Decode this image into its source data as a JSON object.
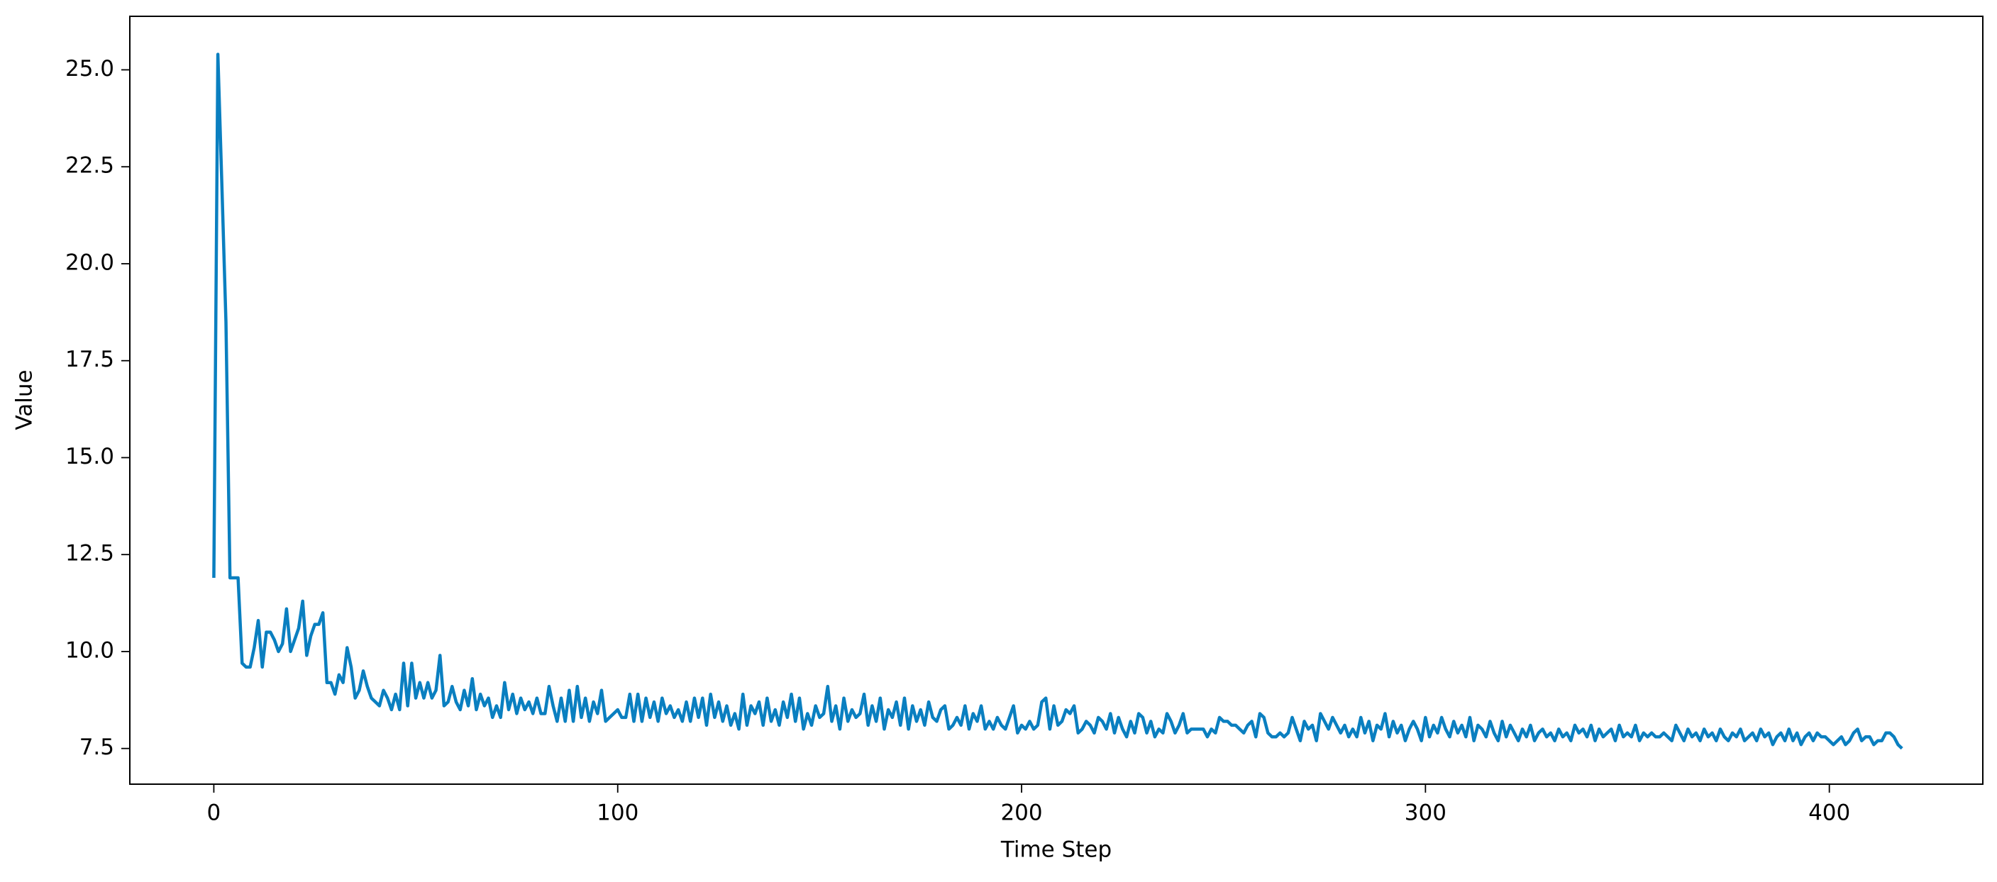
{
  "chart_data": {
    "type": "line",
    "xlabel": "Time Step",
    "ylabel": "Value",
    "color": "#0a7fc0",
    "xlim": [
      -20.8,
      438
    ],
    "ylim": [
      6.58,
      26.38
    ],
    "xticks": [
      0,
      100,
      200,
      300,
      400
    ],
    "yticks": [
      7.5,
      {
        "value": 10,
        "label": "10.0"
      },
      12.5,
      {
        "value": 15,
        "label": "15.0"
      },
      17.5,
      {
        "value": 20,
        "label": "20.0"
      },
      22.5,
      {
        "value": 25,
        "label": "25.0"
      }
    ],
    "grid": false,
    "x": [
      0,
      1,
      2,
      3,
      4,
      5,
      6,
      7,
      8,
      9,
      10,
      11,
      12,
      13,
      14,
      15,
      16,
      17,
      18,
      19,
      20,
      21,
      22,
      23,
      24,
      25,
      26,
      27,
      28,
      29,
      30,
      31,
      32,
      33,
      34,
      35,
      36,
      37,
      38,
      39,
      40,
      41,
      42,
      43,
      44,
      45,
      46,
      47,
      48,
      49,
      50,
      51,
      52,
      53,
      54,
      55,
      56,
      57,
      58,
      59,
      60,
      61,
      62,
      63,
      64,
      65,
      66,
      67,
      68,
      69,
      70,
      71,
      72,
      73,
      74,
      75,
      76,
      77,
      78,
      79,
      80,
      81,
      82,
      83,
      84,
      85,
      86,
      87,
      88,
      89,
      90,
      91,
      92,
      93,
      94,
      95,
      96,
      97,
      98,
      99,
      100,
      101,
      102,
      103,
      104,
      105,
      106,
      107,
      108,
      109,
      110,
      111,
      112,
      113,
      114,
      115,
      116,
      117,
      118,
      119,
      120,
      121,
      122,
      123,
      124,
      125,
      126,
      127,
      128,
      129,
      130,
      131,
      132,
      133,
      134,
      135,
      136,
      137,
      138,
      139,
      140,
      141,
      142,
      143,
      144,
      145,
      146,
      147,
      148,
      149,
      150,
      151,
      152,
      153,
      154,
      155,
      156,
      157,
      158,
      159,
      160,
      161,
      162,
      163,
      164,
      165,
      166,
      167,
      168,
      169,
      170,
      171,
      172,
      173,
      174,
      175,
      176,
      177,
      178,
      179,
      180,
      181,
      182,
      183,
      184,
      185,
      186,
      187,
      188,
      189,
      190,
      191,
      192,
      193,
      194,
      195,
      196,
      197,
      198,
      199,
      200,
      201,
      202,
      203,
      204,
      205,
      206,
      207,
      208,
      209,
      210,
      211,
      212,
      213,
      214,
      215,
      216,
      217,
      218,
      219,
      220,
      221,
      222,
      223,
      224,
      225,
      226,
      227,
      228,
      229,
      230,
      231,
      232,
      233,
      234,
      235,
      236,
      237,
      238,
      239,
      240,
      241,
      242,
      243,
      244,
      245,
      246,
      247,
      248,
      249,
      250,
      251,
      252,
      253,
      254,
      255,
      256,
      257,
      258,
      259,
      260,
      261,
      262,
      263,
      264,
      265,
      266,
      267,
      268,
      269,
      270,
      271,
      272,
      273,
      274,
      275,
      276,
      277,
      278,
      279,
      280,
      281,
      282,
      283,
      284,
      285,
      286,
      287,
      288,
      289,
      290,
      291,
      292,
      293,
      294,
      295,
      296,
      297,
      298,
      299,
      300,
      301,
      302,
      303,
      304,
      305,
      306,
      307,
      308,
      309,
      310,
      311,
      312,
      313,
      314,
      315,
      316,
      317,
      318,
      319,
      320,
      321,
      322,
      323,
      324,
      325,
      326,
      327,
      328,
      329,
      330,
      331,
      332,
      333,
      334,
      335,
      336,
      337,
      338,
      339,
      340,
      341,
      342,
      343,
      344,
      345,
      346,
      347,
      348,
      349,
      350,
      351,
      352,
      353,
      354,
      355,
      356,
      357,
      358,
      359,
      360,
      361,
      362,
      363,
      364,
      365,
      366,
      367,
      368,
      369,
      370,
      371,
      372,
      373,
      374,
      375,
      376,
      377,
      378,
      379,
      380,
      381,
      382,
      383,
      384,
      385,
      386,
      387,
      388,
      389,
      390,
      391,
      392,
      393,
      394,
      395,
      396,
      397,
      398,
      399,
      400,
      401,
      402,
      403,
      404,
      405,
      406,
      407,
      408,
      409,
      410,
      411,
      412,
      413,
      414,
      415,
      416,
      417,
      418
    ],
    "values": [
      11.9,
      25.4,
      22.0,
      18.5,
      11.9,
      11.9,
      11.9,
      9.7,
      9.6,
      9.6,
      10.1,
      10.8,
      9.6,
      10.5,
      10.5,
      10.3,
      10.0,
      10.2,
      11.1,
      10.0,
      10.3,
      10.6,
      11.3,
      9.9,
      10.4,
      10.7,
      10.7,
      11.0,
      9.2,
      9.2,
      8.9,
      9.4,
      9.2,
      10.1,
      9.6,
      8.8,
      9.0,
      9.5,
      9.1,
      8.8,
      8.7,
      8.6,
      9.0,
      8.8,
      8.5,
      8.9,
      8.5,
      9.7,
      8.6,
      9.7,
      8.8,
      9.2,
      8.8,
      9.2,
      8.8,
      9.0,
      9.9,
      8.6,
      8.7,
      9.1,
      8.7,
      8.5,
      9.0,
      8.6,
      9.3,
      8.5,
      8.9,
      8.6,
      8.8,
      8.3,
      8.6,
      8.3,
      9.2,
      8.5,
      8.9,
      8.4,
      8.8,
      8.5,
      8.7,
      8.4,
      8.8,
      8.4,
      8.4,
      9.1,
      8.6,
      8.2,
      8.8,
      8.2,
      9.0,
      8.2,
      9.1,
      8.3,
      8.8,
      8.2,
      8.7,
      8.4,
      9.0,
      8.2,
      8.3,
      8.4,
      8.5,
      8.3,
      8.3,
      8.9,
      8.2,
      8.9,
      8.2,
      8.8,
      8.3,
      8.7,
      8.2,
      8.8,
      8.4,
      8.6,
      8.3,
      8.5,
      8.2,
      8.7,
      8.2,
      8.8,
      8.3,
      8.8,
      8.1,
      8.9,
      8.3,
      8.7,
      8.2,
      8.6,
      8.1,
      8.4,
      8.0,
      8.9,
      8.1,
      8.6,
      8.4,
      8.7,
      8.1,
      8.8,
      8.2,
      8.5,
      8.1,
      8.7,
      8.3,
      8.9,
      8.2,
      8.8,
      8.0,
      8.4,
      8.1,
      8.6,
      8.3,
      8.4,
      9.1,
      8.2,
      8.6,
      8.0,
      8.8,
      8.2,
      8.5,
      8.3,
      8.4,
      8.9,
      8.1,
      8.6,
      8.2,
      8.8,
      8.0,
      8.5,
      8.3,
      8.7,
      8.1,
      8.8,
      8.0,
      8.6,
      8.2,
      8.5,
      8.1,
      8.7,
      8.3,
      8.2,
      8.5,
      8.6,
      8.0,
      8.1,
      8.3,
      8.1,
      8.6,
      8.0,
      8.4,
      8.2,
      8.6,
      8.0,
      8.2,
      8.0,
      8.3,
      8.1,
      8.0,
      8.3,
      8.6,
      7.9,
      8.1,
      8.0,
      8.2,
      8.0,
      8.1,
      8.7,
      8.8,
      8.0,
      8.6,
      8.1,
      8.2,
      8.5,
      8.4,
      8.6,
      7.9,
      8.0,
      8.2,
      8.1,
      7.9,
      8.3,
      8.2,
      8.0,
      8.4,
      7.9,
      8.3,
      8.0,
      7.8,
      8.2,
      7.9,
      8.4,
      8.3,
      7.9,
      8.2,
      7.8,
      8.0,
      7.9,
      8.4,
      8.2,
      7.9,
      8.1,
      8.4,
      7.9,
      8.0,
      8.0,
      8.0,
      8.0,
      7.8,
      8.0,
      7.9,
      8.3,
      8.2,
      8.2,
      8.1,
      8.1,
      8.0,
      7.9,
      8.1,
      8.2,
      7.8,
      8.4,
      8.3,
      7.9,
      7.8,
      7.8,
      7.9,
      7.8,
      7.9,
      8.3,
      8.0,
      7.7,
      8.2,
      8.0,
      8.1,
      7.7,
      8.4,
      8.2,
      8.0,
      8.3,
      8.1,
      7.9,
      8.1,
      7.8,
      8.0,
      7.8,
      8.3,
      7.9,
      8.2,
      7.7,
      8.1,
      8.0,
      8.4,
      7.8,
      8.2,
      7.9,
      8.1,
      7.7,
      8.0,
      8.2,
      8.0,
      7.7,
      8.3,
      7.8,
      8.1,
      7.9,
      8.3,
      8.0,
      7.8,
      8.2,
      7.9,
      8.1,
      7.8,
      8.3,
      7.7,
      8.1,
      8.0,
      7.8,
      8.2,
      7.9,
      7.7,
      8.2,
      7.8,
      8.1,
      7.9,
      7.7,
      8.0,
      7.8,
      8.1,
      7.7,
      7.9,
      8.0,
      7.8,
      7.9,
      7.7,
      8.0,
      7.8,
      7.9,
      7.7,
      8.1,
      7.9,
      8.0,
      7.8,
      8.1,
      7.7,
      8.0,
      7.8,
      7.9,
      8.0,
      7.7,
      8.1,
      7.8,
      7.9,
      7.8,
      8.1,
      7.7,
      7.9,
      7.8,
      7.9,
      7.8,
      7.8,
      7.9,
      7.8,
      7.7,
      8.1,
      7.9,
      7.7,
      8.0,
      7.8,
      7.9,
      7.7,
      8.0,
      7.8,
      7.9,
      7.7,
      8.0,
      7.8,
      7.7,
      7.9,
      7.8,
      8.0,
      7.7,
      7.8,
      7.9,
      7.7,
      8.0,
      7.8,
      7.9,
      7.6,
      7.8,
      7.9,
      7.7,
      8.0,
      7.7,
      7.9,
      7.6,
      7.8,
      7.9,
      7.7,
      7.9,
      7.8,
      7.8,
      7.7,
      7.6,
      7.7,
      7.8,
      7.6,
      7.7,
      7.9,
      8.0,
      7.7,
      7.8,
      7.8,
      7.6,
      7.7,
      7.7,
      7.9,
      7.9,
      7.8,
      7.6,
      7.5
    ]
  }
}
